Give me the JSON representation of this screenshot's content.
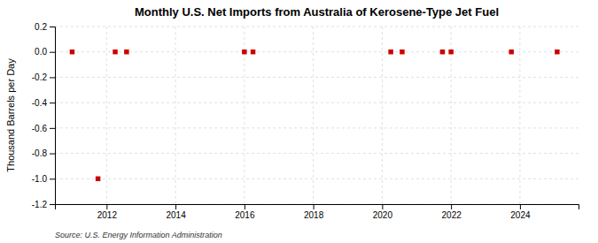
{
  "chart_data": {
    "type": "scatter",
    "title": "Monthly U.S. Net Imports from Australia of Kerosene-Type Jet Fuel",
    "ylabel": "Thousand Barrels per Day",
    "annotations": [
      "Source: U.S. Energy Information Administration"
    ],
    "x": [
      2011.0,
      2011.75,
      2012.25,
      2012.58,
      2016.0,
      2016.25,
      2020.25,
      2020.58,
      2021.75,
      2022.0,
      2023.75,
      2025.08
    ],
    "values": [
      0.0,
      -1.0,
      0.0,
      0.0,
      0.0,
      0.0,
      0.0,
      0.0,
      0.0,
      0.0,
      0.0,
      0.0
    ],
    "color": "#cc0000",
    "marker": "square",
    "xlim": [
      2010.5,
      2025.7
    ],
    "xticks": [
      2012,
      2014,
      2016,
      2018,
      2020,
      2022,
      2024
    ],
    "ylim": [
      -1.2,
      0.2
    ],
    "yticks": [
      0.2,
      {
        "value": 0,
        "label": "0.0"
      },
      -0.2,
      -0.4,
      -0.6,
      -0.8,
      {
        "value": -1,
        "label": "-1.0"
      },
      -1.2
    ],
    "grid": true
  }
}
